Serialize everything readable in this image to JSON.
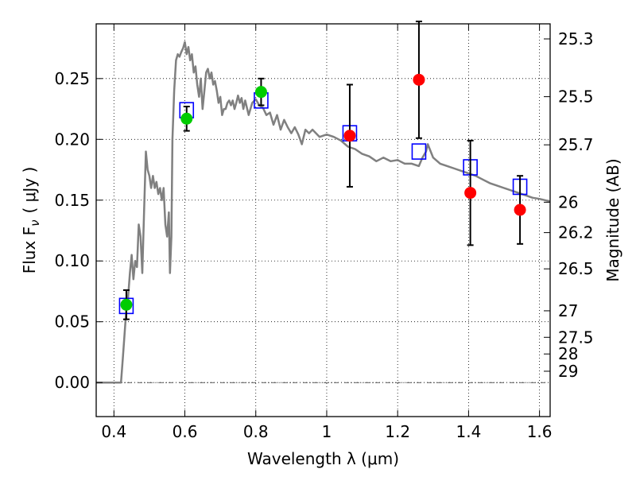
{
  "chart_data": {
    "type": "scatter",
    "xlabel": "Wavelength  λ (μm)",
    "ylabel": "Flux  F",
    "ylabel_subscript": "ν",
    "ylabel_unit": "( μJy )",
    "y2label": "Magnitude (AB)",
    "xlim": [
      0.35,
      1.63
    ],
    "ylim": [
      -0.028,
      0.295
    ],
    "grid": true,
    "x_ticks": [
      {
        "value": 0.4,
        "label": "0.4"
      },
      {
        "value": 0.6,
        "label": "0.6"
      },
      {
        "value": 0.8,
        "label": "0.8"
      },
      {
        "value": 1.0,
        "label": "1"
      },
      {
        "value": 1.2,
        "label": "1.2"
      },
      {
        "value": 1.4,
        "label": "1.4"
      },
      {
        "value": 1.6,
        "label": "1.6"
      }
    ],
    "y_ticks": [
      {
        "value": 0.0,
        "label": "0.00"
      },
      {
        "value": 0.05,
        "label": "0.05"
      },
      {
        "value": 0.1,
        "label": "0.10"
      },
      {
        "value": 0.15,
        "label": "0.15"
      },
      {
        "value": 0.2,
        "label": "0.20"
      },
      {
        "value": 0.25,
        "label": "0.25"
      }
    ],
    "y2_ticks": [
      {
        "label": "25.3",
        "flux": 0.2826
      },
      {
        "label": "25.5",
        "flux": 0.2351
      },
      {
        "label": "25.7",
        "flux": 0.1955
      },
      {
        "label": "26",
        "flux": 0.1483
      },
      {
        "label": "26.2",
        "flux": 0.1233
      },
      {
        "label": "26.5",
        "flux": 0.0935
      },
      {
        "label": "27",
        "flux": 0.059
      },
      {
        "label": "27.5",
        "flux": 0.0372
      },
      {
        "label": "28",
        "flux": 0.0235
      },
      {
        "label": "29",
        "flux": 0.0093
      }
    ],
    "series": [
      {
        "kind": "line",
        "color": "#808080",
        "points": [
          [
            0.35,
            0.0
          ],
          [
            0.415,
            0.0
          ],
          [
            0.42,
            0.0
          ],
          [
            0.425,
            0.02
          ],
          [
            0.43,
            0.04
          ],
          [
            0.435,
            0.06
          ],
          [
            0.44,
            0.07
          ],
          [
            0.445,
            0.09
          ],
          [
            0.45,
            0.105
          ],
          [
            0.455,
            0.085
          ],
          [
            0.46,
            0.1
          ],
          [
            0.465,
            0.095
          ],
          [
            0.47,
            0.13
          ],
          [
            0.475,
            0.12
          ],
          [
            0.48,
            0.09
          ],
          [
            0.485,
            0.14
          ],
          [
            0.49,
            0.19
          ],
          [
            0.495,
            0.175
          ],
          [
            0.5,
            0.17
          ],
          [
            0.505,
            0.16
          ],
          [
            0.51,
            0.17
          ],
          [
            0.515,
            0.16
          ],
          [
            0.52,
            0.165
          ],
          [
            0.525,
            0.155
          ],
          [
            0.53,
            0.16
          ],
          [
            0.535,
            0.15
          ],
          [
            0.54,
            0.16
          ],
          [
            0.545,
            0.13
          ],
          [
            0.55,
            0.12
          ],
          [
            0.555,
            0.14
          ],
          [
            0.558,
            0.09
          ],
          [
            0.562,
            0.12
          ],
          [
            0.565,
            0.2
          ],
          [
            0.57,
            0.24
          ],
          [
            0.575,
            0.265
          ],
          [
            0.58,
            0.27
          ],
          [
            0.585,
            0.268
          ],
          [
            0.59,
            0.272
          ],
          [
            0.595,
            0.275
          ],
          [
            0.6,
            0.28
          ],
          [
            0.605,
            0.27
          ],
          [
            0.61,
            0.276
          ],
          [
            0.615,
            0.265
          ],
          [
            0.62,
            0.27
          ],
          [
            0.625,
            0.255
          ],
          [
            0.63,
            0.26
          ],
          [
            0.635,
            0.245
          ],
          [
            0.64,
            0.235
          ],
          [
            0.645,
            0.25
          ],
          [
            0.65,
            0.225
          ],
          [
            0.655,
            0.24
          ],
          [
            0.66,
            0.255
          ],
          [
            0.665,
            0.258
          ],
          [
            0.67,
            0.25
          ],
          [
            0.675,
            0.255
          ],
          [
            0.68,
            0.245
          ],
          [
            0.685,
            0.248
          ],
          [
            0.69,
            0.24
          ],
          [
            0.695,
            0.23
          ],
          [
            0.7,
            0.235
          ],
          [
            0.705,
            0.22
          ],
          [
            0.71,
            0.225
          ],
          [
            0.715,
            0.225
          ],
          [
            0.72,
            0.23
          ],
          [
            0.725,
            0.232
          ],
          [
            0.73,
            0.228
          ],
          [
            0.735,
            0.232
          ],
          [
            0.74,
            0.225
          ],
          [
            0.745,
            0.23
          ],
          [
            0.75,
            0.236
          ],
          [
            0.755,
            0.23
          ],
          [
            0.76,
            0.234
          ],
          [
            0.765,
            0.225
          ],
          [
            0.77,
            0.232
          ],
          [
            0.775,
            0.226
          ],
          [
            0.78,
            0.22
          ],
          [
            0.79,
            0.23
          ],
          [
            0.8,
            0.233
          ],
          [
            0.81,
            0.228
          ],
          [
            0.82,
            0.226
          ],
          [
            0.83,
            0.22
          ],
          [
            0.84,
            0.222
          ],
          [
            0.85,
            0.212
          ],
          [
            0.86,
            0.22
          ],
          [
            0.87,
            0.208
          ],
          [
            0.88,
            0.216
          ],
          [
            0.89,
            0.21
          ],
          [
            0.9,
            0.205
          ],
          [
            0.91,
            0.21
          ],
          [
            0.92,
            0.204
          ],
          [
            0.93,
            0.196
          ],
          [
            0.94,
            0.208
          ],
          [
            0.95,
            0.205
          ],
          [
            0.96,
            0.208
          ],
          [
            0.98,
            0.202
          ],
          [
            1.0,
            0.204
          ],
          [
            1.02,
            0.202
          ],
          [
            1.04,
            0.199
          ],
          [
            1.06,
            0.194
          ],
          [
            1.08,
            0.192
          ],
          [
            1.1,
            0.188
          ],
          [
            1.12,
            0.186
          ],
          [
            1.14,
            0.182
          ],
          [
            1.16,
            0.185
          ],
          [
            1.18,
            0.182
          ],
          [
            1.2,
            0.183
          ],
          [
            1.22,
            0.18
          ],
          [
            1.24,
            0.18
          ],
          [
            1.26,
            0.178
          ],
          [
            1.27,
            0.185
          ],
          [
            1.28,
            0.19
          ],
          [
            1.285,
            0.196
          ],
          [
            1.3,
            0.185
          ],
          [
            1.32,
            0.18
          ],
          [
            1.34,
            0.178
          ],
          [
            1.36,
            0.176
          ],
          [
            1.38,
            0.174
          ],
          [
            1.4,
            0.172
          ],
          [
            1.42,
            0.17
          ],
          [
            1.44,
            0.167
          ],
          [
            1.46,
            0.164
          ],
          [
            1.48,
            0.162
          ],
          [
            1.5,
            0.16
          ],
          [
            1.52,
            0.158
          ],
          [
            1.54,
            0.156
          ],
          [
            1.56,
            0.154
          ],
          [
            1.58,
            0.152
          ],
          [
            1.6,
            0.151
          ],
          [
            1.63,
            0.149
          ]
        ]
      },
      {
        "kind": "model_squares",
        "color": "#0000ff",
        "points": [
          [
            0.435,
            0.063
          ],
          [
            0.605,
            0.224
          ],
          [
            0.815,
            0.232
          ],
          [
            1.065,
            0.205
          ],
          [
            1.26,
            0.19
          ],
          [
            1.405,
            0.177
          ],
          [
            1.545,
            0.161
          ]
        ]
      },
      {
        "kind": "detections",
        "color": "#00cc00",
        "points": [
          {
            "x": 0.435,
            "y": 0.064,
            "err": 0.012
          },
          {
            "x": 0.605,
            "y": 0.217,
            "err": 0.01
          },
          {
            "x": 0.815,
            "y": 0.239,
            "err": 0.011
          }
        ]
      },
      {
        "kind": "detections",
        "color": "#ff0000",
        "points": [
          {
            "x": 1.065,
            "y": 0.203,
            "err": 0.042
          },
          {
            "x": 1.26,
            "y": 0.249,
            "err": 0.048
          },
          {
            "x": 1.405,
            "y": 0.156,
            "err": 0.043
          },
          {
            "x": 1.545,
            "y": 0.142,
            "err": 0.028
          }
        ]
      }
    ]
  }
}
